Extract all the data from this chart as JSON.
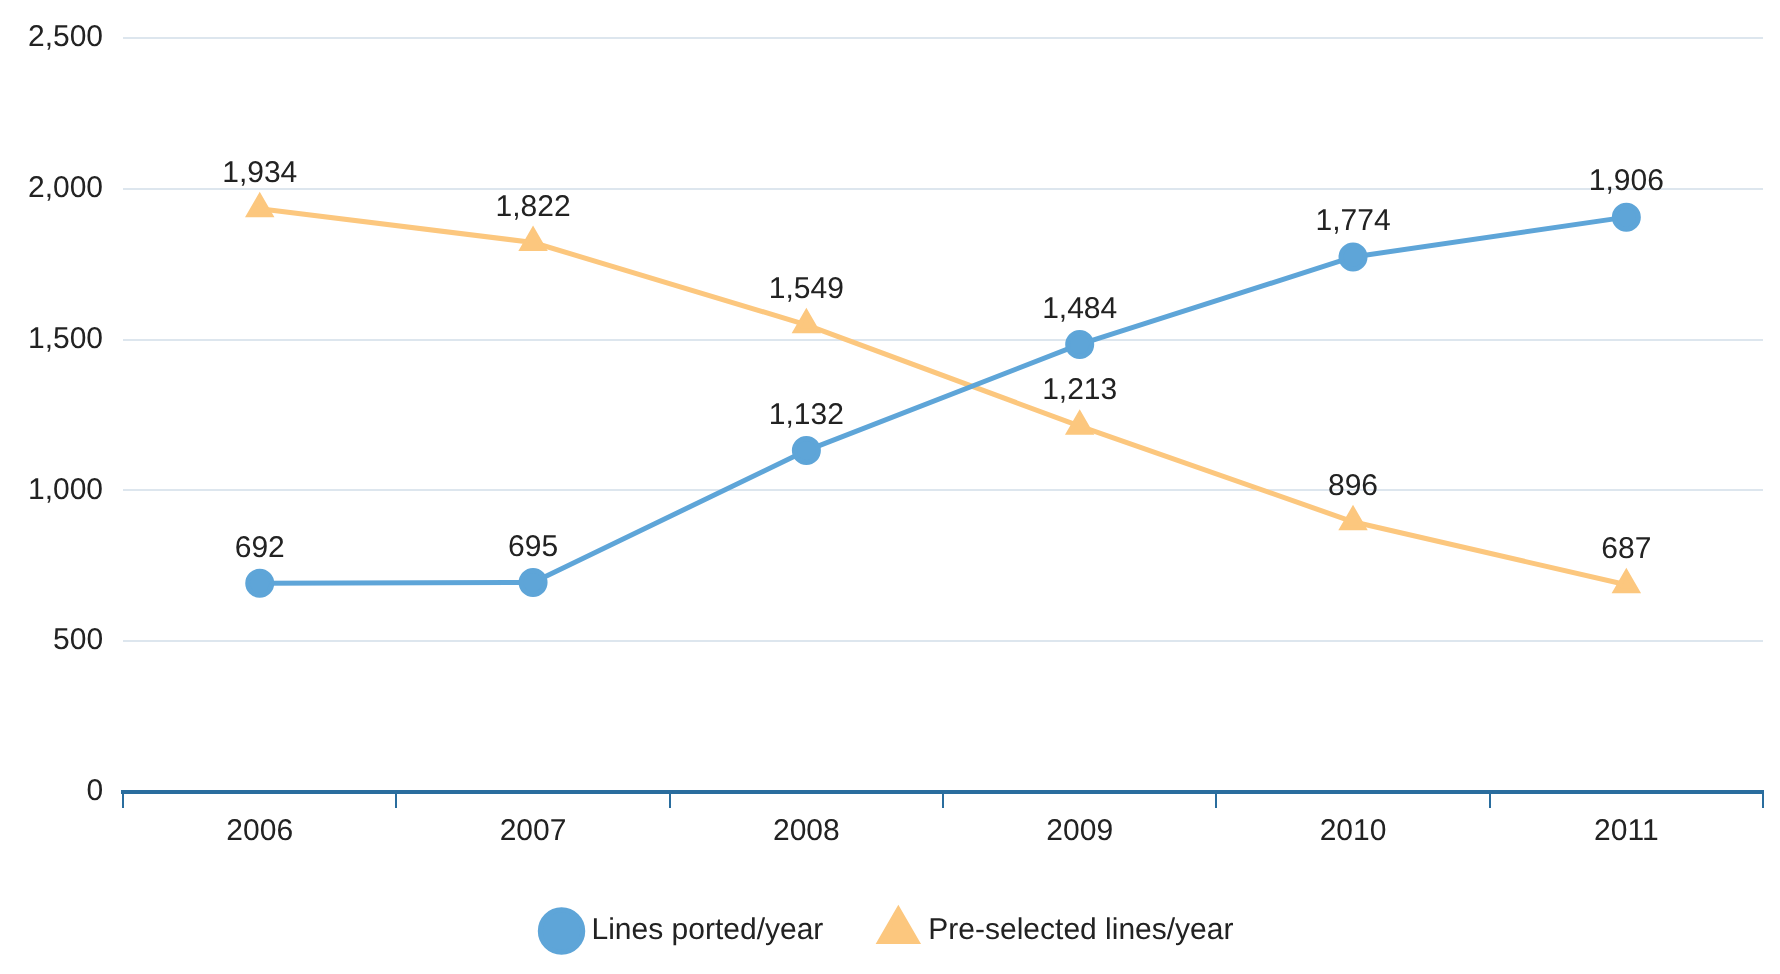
{
  "chart_data": {
    "type": "line",
    "categories": [
      "2006",
      "2007",
      "2008",
      "2009",
      "2010",
      "2011"
    ],
    "series": [
      {
        "name": "Lines ported/year",
        "color": "#5ea5d8",
        "marker": "circle",
        "values": [
          692,
          695,
          1132,
          1484,
          1774,
          1906
        ],
        "value_labels": [
          "692",
          "695",
          "1,132",
          "1,484",
          "1,774",
          "1,906"
        ]
      },
      {
        "name": "Pre-selected lines/year",
        "color": "#fcc77e",
        "marker": "triangle",
        "values": [
          1934,
          1822,
          1549,
          1213,
          896,
          687
        ],
        "value_labels": [
          "1,934",
          "1,822",
          "1,549",
          "1,213",
          "896",
          "687"
        ]
      }
    ],
    "ylim": [
      0,
      2500
    ],
    "yticks": [
      {
        "value": 0,
        "label": "0"
      },
      {
        "value": 500,
        "label": "500"
      },
      {
        "value": 1000,
        "label": "1,000"
      },
      {
        "value": 1500,
        "label": "1,500"
      },
      {
        "value": 2000,
        "label": "2,000"
      },
      {
        "value": 2500,
        "label": "2,500"
      }
    ],
    "grid": "y",
    "legend": "bottom",
    "line_style": "solid"
  }
}
